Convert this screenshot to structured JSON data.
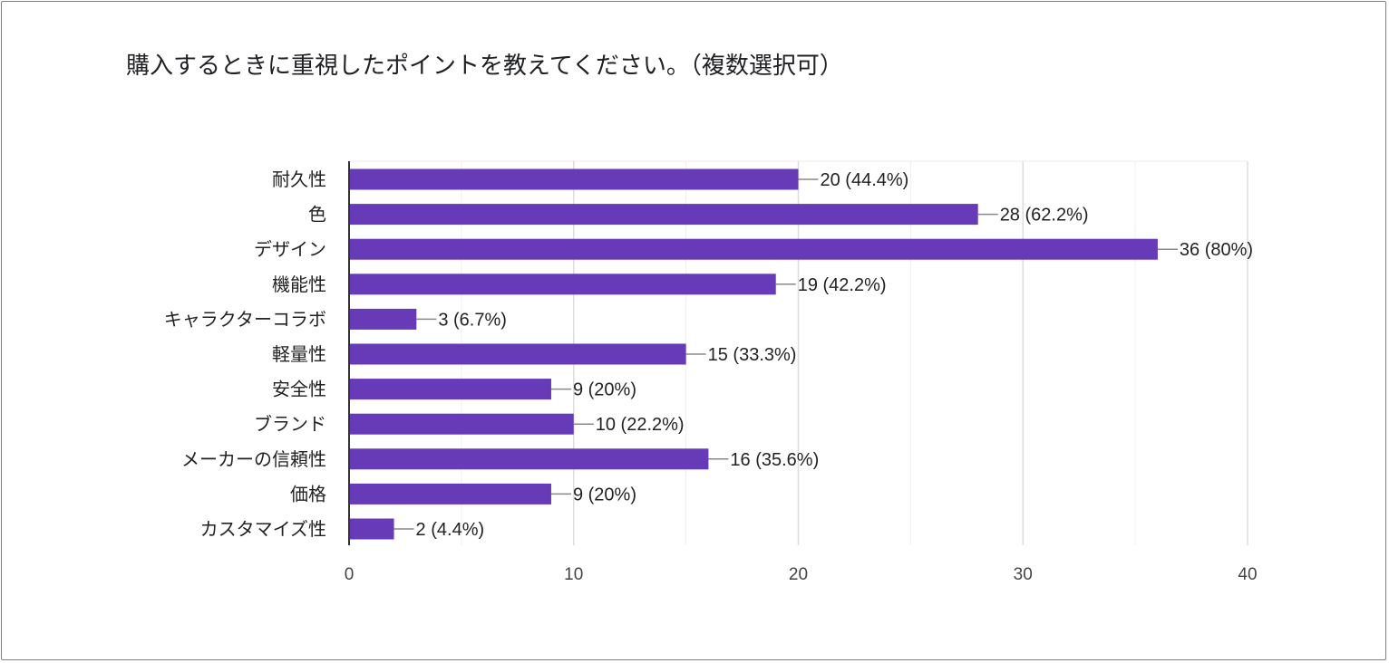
{
  "chart_data": {
    "type": "bar",
    "orientation": "horizontal",
    "title": "購入するときに重視したポイントを教えてください。（複数選択可）",
    "categories": [
      "耐久性",
      "色",
      "デザイン",
      "機能性",
      "キャラクターコラボ",
      "軽量性",
      "安全性",
      "ブランド",
      "メーカーの信頼性",
      "価格",
      "カスタマイズ性"
    ],
    "values": [
      20,
      28,
      36,
      19,
      3,
      15,
      9,
      10,
      16,
      9,
      2
    ],
    "data_labels": [
      "20 (44.4%)",
      "28 (62.2%)",
      "36 (80%)",
      "19 (42.2%)",
      "3 (6.7%)",
      "15 (33.3%)",
      "9 (20%)",
      "10 (22.2%)",
      "16 (35.6%)",
      "9 (20%)",
      "2 (4.4%)"
    ],
    "xlim": [
      0,
      40
    ],
    "x_ticks": [
      0,
      10,
      20,
      30,
      40
    ],
    "x_tick_labels": [
      "0",
      "10",
      "20",
      "30",
      "40"
    ],
    "grid": true,
    "legend": "none",
    "bar_color": "#673ab7"
  }
}
